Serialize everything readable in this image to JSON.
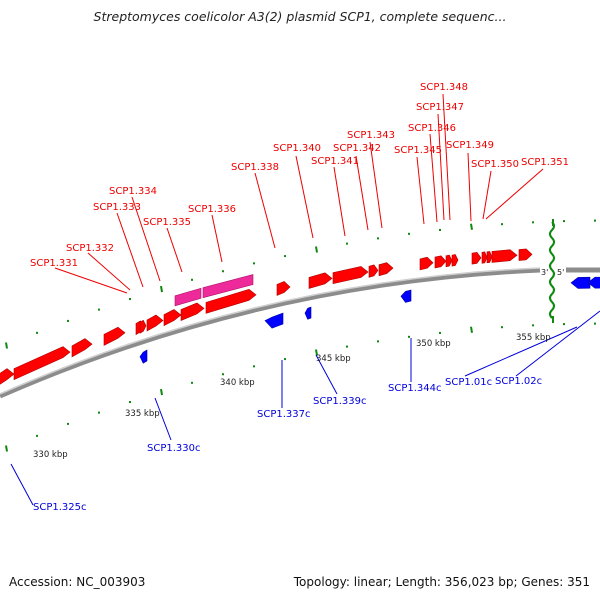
{
  "title": "Streptomyces coelicolor A3(2) plasmid SCP1, complete sequenc...",
  "footer": {
    "accession": "Accession: NC_003903",
    "summary": "Topology: linear; Length: 356,023 bp; Genes: 351"
  },
  "colors": {
    "forward_gene": "#ff0000",
    "reverse_gene": "#0000ff",
    "highlight_gene": "#ee2a9a",
    "tick": "#118811",
    "backbone": "#999999",
    "forward_label": "#ee0000",
    "reverse_label": "#0000dd"
  },
  "end_markers": {
    "three_prime": "3'",
    "five_prime": "5'"
  },
  "scale_labels": [
    "330 kbp",
    "335 kbp",
    "340 kbp",
    "345 kbp",
    "350 kbp",
    "355 kbp"
  ],
  "forward_labels": [
    "SCP1.331",
    "SCP1.332",
    "SCP1.333",
    "SCP1.334",
    "SCP1.335",
    "SCP1.336",
    "SCP1.338",
    "SCP1.340",
    "SCP1.341",
    "SCP1.342",
    "SCP1.343",
    "SCP1.345",
    "SCP1.346",
    "SCP1.347",
    "SCP1.348",
    "SCP1.349",
    "SCP1.350",
    "SCP1.351"
  ],
  "reverse_labels": [
    "SCP1.325c",
    "SCP1.330c",
    "SCP1.337c",
    "SCP1.339c",
    "SCP1.344c",
    "SCP1.01c",
    "SCP1.02c"
  ]
}
